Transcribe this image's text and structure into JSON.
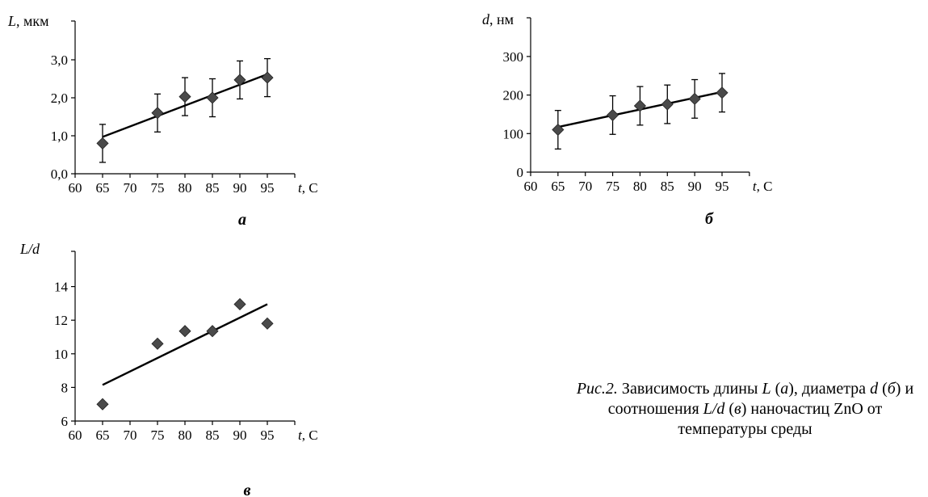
{
  "chart_data": [
    {
      "type": "scatter",
      "ylabel_var": "L",
      "ylabel_unit": ", мкм",
      "xlabel_var": "t",
      "xlabel_unit": ", C",
      "panel_label": "а",
      "x_ticks": [
        "60",
        "65",
        "70",
        "75",
        "80",
        "85",
        "90",
        "95"
      ],
      "y_ticks": [
        "0,0",
        "1,0",
        "2,0",
        "3,0"
      ],
      "xlim": [
        60,
        100
      ],
      "ylim": [
        0,
        4
      ],
      "points": [
        {
          "x": 65,
          "y": 0.8,
          "err": 0.5
        },
        {
          "x": 75,
          "y": 1.6,
          "err": 0.5
        },
        {
          "x": 80,
          "y": 2.03,
          "err": 0.5
        },
        {
          "x": 85,
          "y": 2.0,
          "err": 0.5
        },
        {
          "x": 90,
          "y": 2.47,
          "err": 0.5
        },
        {
          "x": 95,
          "y": 2.53,
          "err": 0.5
        }
      ],
      "trend": [
        [
          65,
          0.97
        ],
        [
          95,
          2.62
        ]
      ]
    },
    {
      "type": "scatter",
      "ylabel_var": "d",
      "ylabel_unit": ", нм",
      "xlabel_var": "t",
      "xlabel_unit": ", C",
      "panel_label": "б",
      "x_ticks": [
        "60",
        "65",
        "70",
        "75",
        "80",
        "85",
        "90",
        "95"
      ],
      "y_ticks": [
        "0",
        "100",
        "200",
        "300"
      ],
      "xlim": [
        60,
        100
      ],
      "ylim": [
        0,
        400
      ],
      "points": [
        {
          "x": 65,
          "y": 110,
          "err": 50
        },
        {
          "x": 75,
          "y": 148,
          "err": 50
        },
        {
          "x": 80,
          "y": 172,
          "err": 50
        },
        {
          "x": 85,
          "y": 176,
          "err": 50
        },
        {
          "x": 90,
          "y": 190,
          "err": 50
        },
        {
          "x": 95,
          "y": 206,
          "err": 50
        }
      ],
      "trend": [
        [
          65,
          117
        ],
        [
          95,
          208
        ]
      ]
    },
    {
      "type": "scatter",
      "ylabel_var": "L/d",
      "ylabel_unit": "",
      "xlabel_var": "t",
      "xlabel_unit": ", C",
      "panel_label": "в",
      "x_ticks": [
        "60",
        "65",
        "70",
        "75",
        "80",
        "85",
        "90",
        "95"
      ],
      "y_ticks": [
        "6",
        "8",
        "10",
        "12",
        "14"
      ],
      "xlim": [
        60,
        100
      ],
      "ylim": [
        6,
        16
      ],
      "points": [
        {
          "x": 65,
          "y": 7.0,
          "err": 0
        },
        {
          "x": 75,
          "y": 10.6,
          "err": 0
        },
        {
          "x": 80,
          "y": 11.35,
          "err": 0
        },
        {
          "x": 85,
          "y": 11.35,
          "err": 0
        },
        {
          "x": 90,
          "y": 12.95,
          "err": 0
        },
        {
          "x": 95,
          "y": 11.8,
          "err": 0
        }
      ],
      "trend": [
        [
          65,
          8.15
        ],
        [
          95,
          12.95
        ]
      ]
    }
  ],
  "caption": {
    "prefix": "Рис.2.",
    "text_1": " Зависимость длины ",
    "L": "L",
    "a": "а",
    "text_2": ", диаметра ",
    "d": "d",
    "b": "б",
    "text_3": " и соотношения ",
    "Ld": "L/d",
    "v": "в",
    "text_4": " наночастиц ZnO от температуры среды"
  },
  "colors": {
    "marker": "#4a4a4a",
    "line": "#000000"
  }
}
